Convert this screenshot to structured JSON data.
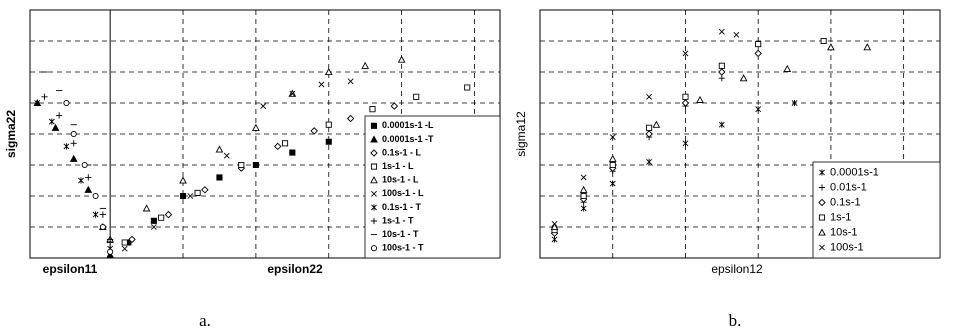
{
  "chart_data": [
    {
      "type": "scatter",
      "x_labels": [
        "epsilon11",
        "epsilon22"
      ],
      "ylabel": "sigma22",
      "caption": "a.",
      "xlim": [
        -1.1,
        5.35
      ],
      "ylim": [
        0,
        8
      ],
      "xticks": [
        0,
        1,
        2,
        3,
        4,
        5
      ],
      "yticks": [
        1,
        2,
        3,
        4,
        5,
        6,
        7
      ],
      "grid": true,
      "legend": "lower right",
      "series": [
        {
          "name": "0.0001s-1 -L",
          "color": "#000000",
          "marker": "square-filled",
          "x": [
            0.25,
            0.6,
            1.0,
            1.5,
            2.0,
            2.5,
            3.0,
            3.6
          ],
          "values": [
            0.5,
            1.2,
            2.0,
            2.6,
            3.0,
            3.4,
            3.75,
            4.2
          ]
        },
        {
          "name": "0.0001s-1 -T",
          "color": "#000000",
          "marker": "triangle-filled",
          "x": [
            -1.0,
            -0.75,
            -0.5,
            -0.3,
            -0.1,
            0.0
          ],
          "values": [
            5.0,
            4.2,
            3.2,
            2.2,
            1.0,
            0.1
          ]
        },
        {
          "name": "0.1s-1 - L",
          "color": "#000000",
          "marker": "diamond",
          "x": [
            0.3,
            0.8,
            1.3,
            1.8,
            2.3,
            2.8,
            3.3,
            3.9
          ],
          "values": [
            0.6,
            1.4,
            2.2,
            2.9,
            3.6,
            4.1,
            4.5,
            4.9
          ]
        },
        {
          "name": "1s-1 - L",
          "color": "#000000",
          "marker": "square",
          "x": [
            0.2,
            0.7,
            1.2,
            1.8,
            2.4,
            3.0,
            3.6,
            4.2,
            4.9
          ],
          "values": [
            0.5,
            1.3,
            2.1,
            3.0,
            3.7,
            4.3,
            4.8,
            5.2,
            5.5
          ]
        },
        {
          "name": "10s-1 - L",
          "color": "#000000",
          "marker": "triangle",
          "x": [
            0.0,
            0.5,
            1.0,
            1.5,
            2.0,
            2.5,
            3.0,
            3.5,
            4.0
          ],
          "values": [
            0.6,
            1.6,
            2.5,
            3.5,
            4.2,
            5.3,
            6.0,
            6.2,
            6.4
          ]
        },
        {
          "name": "100s-1 - L",
          "color": "#000000",
          "marker": "x",
          "x": [
            0.2,
            0.6,
            1.1,
            1.6,
            2.1,
            2.5,
            2.9,
            3.3
          ],
          "values": [
            0.3,
            1.0,
            2.0,
            3.3,
            4.9,
            5.3,
            5.6,
            5.7
          ]
        },
        {
          "name": "0.1s-1 - T",
          "color": "#000000",
          "marker": "asterisk",
          "x": [
            -1.0,
            -0.8,
            -0.6,
            -0.4,
            -0.2,
            0.0
          ],
          "values": [
            5.0,
            4.4,
            3.6,
            2.5,
            1.4,
            0.3
          ]
        },
        {
          "name": "1s-1 - T",
          "color": "#000000",
          "marker": "plus",
          "x": [
            -0.9,
            -0.7,
            -0.5,
            -0.3,
            -0.1,
            0.0
          ],
          "values": [
            5.2,
            4.6,
            3.7,
            2.6,
            1.4,
            0.6
          ]
        },
        {
          "name": "10s-1 - T",
          "color": "#000000",
          "marker": "dash",
          "x": [
            -0.9,
            -0.7,
            -0.5,
            -0.3,
            -0.1,
            0.0
          ],
          "values": [
            6.0,
            5.4,
            4.3,
            3.0,
            1.6,
            0.5
          ]
        },
        {
          "name": "100s-1 - T",
          "color": "#000000",
          "marker": "circle",
          "x": [
            -0.6,
            -0.5,
            -0.35,
            -0.2,
            -0.1,
            0.0
          ],
          "values": [
            5.0,
            4.0,
            3.0,
            2.0,
            1.0,
            0.2
          ]
        }
      ]
    },
    {
      "type": "scatter",
      "x_labels": [
        "epsilon12"
      ],
      "ylabel": "sigma12",
      "caption": "b.",
      "xlim": [
        0,
        5.5
      ],
      "ylim": [
        0,
        8
      ],
      "xticks": [
        1,
        2,
        3,
        4,
        5
      ],
      "yticks": [
        1,
        2,
        3,
        4,
        5,
        6,
        7
      ],
      "grid": true,
      "legend": "lower right",
      "series": [
        {
          "name": "0.0001s-1",
          "color": "#000000",
          "marker": "asterisk",
          "x": [
            0.2,
            0.6,
            1.0,
            1.5,
            2.0,
            2.5,
            3.0,
            3.5
          ],
          "values": [
            0.6,
            1.6,
            2.4,
            3.1,
            3.7,
            4.3,
            4.8,
            5.0
          ]
        },
        {
          "name": "0.01s-1",
          "color": "#000000",
          "marker": "plus",
          "x": [
            0.2,
            0.6,
            1.0,
            1.5,
            2.0,
            2.5
          ],
          "values": [
            0.8,
            1.8,
            2.8,
            3.9,
            4.9,
            5.8
          ]
        },
        {
          "name": "0.1s-1",
          "color": "#000000",
          "marker": "diamond",
          "x": [
            0.2,
            0.6,
            1.0,
            1.5,
            2.0,
            2.5,
            3.0
          ],
          "values": [
            0.8,
            1.9,
            2.9,
            4.0,
            5.0,
            6.0,
            6.6
          ]
        },
        {
          "name": "1s-1",
          "color": "#000000",
          "marker": "square",
          "x": [
            0.2,
            0.6,
            1.0,
            1.5,
            2.0,
            2.5,
            3.0,
            3.9
          ],
          "values": [
            0.9,
            2.0,
            3.0,
            4.2,
            5.2,
            6.2,
            6.9,
            7.0
          ]
        },
        {
          "name": "10s-1",
          "color": "#000000",
          "marker": "triangle",
          "x": [
            0.2,
            0.6,
            1.0,
            1.6,
            2.2,
            2.8,
            3.4,
            4.0,
            4.5
          ],
          "values": [
            1.0,
            2.2,
            3.2,
            4.3,
            5.1,
            5.8,
            6.1,
            6.8,
            6.8
          ]
        },
        {
          "name": "100s-1",
          "color": "#000000",
          "marker": "x",
          "x": [
            0.2,
            0.6,
            1.0,
            1.5,
            2.0,
            2.5,
            2.7
          ],
          "values": [
            1.1,
            2.6,
            3.9,
            5.2,
            6.6,
            7.3,
            7.2
          ]
        }
      ]
    }
  ]
}
